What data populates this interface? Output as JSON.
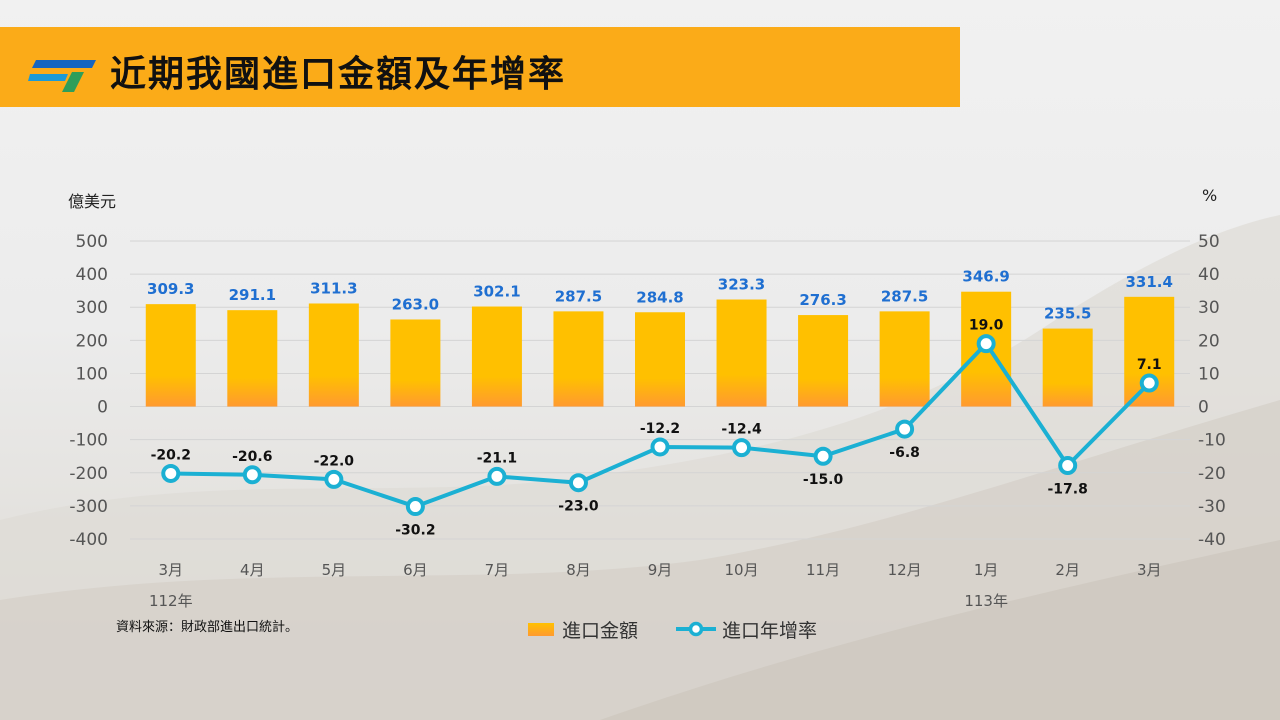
{
  "title": "近期我國進口金額及年增率",
  "source_note": "資料來源：財政部進出口統計。",
  "colors": {
    "title_bar": "#fbab18",
    "bar_top": "#ffc000",
    "bar_bottom": "#ff9a30",
    "line": "#1bb0d3",
    "bar_label": "#1f6fd1",
    "line_label": "#111111"
  },
  "icons": {
    "logo": "logo-icon"
  },
  "chart_data": {
    "type": "bar",
    "categories": [
      "3月",
      "4月",
      "5月",
      "6月",
      "7月",
      "8月",
      "9月",
      "10月",
      "11月",
      "12月",
      "1月",
      "2月",
      "3月"
    ],
    "year_labels": [
      {
        "label": "112年",
        "category_index": 0
      },
      {
        "label": "113年",
        "category_index": 10
      }
    ],
    "series": [
      {
        "name": "進口金額",
        "type": "bar",
        "axis": "left",
        "values": [
          309.3,
          291.1,
          311.3,
          263.0,
          302.1,
          287.5,
          284.8,
          323.3,
          276.3,
          287.5,
          346.9,
          235.5,
          331.4
        ],
        "labels": [
          "309.3",
          "291.1",
          "311.3",
          "263.0",
          "302.1",
          "287.5",
          "284.8",
          "323.3",
          "276.3",
          "287.5",
          "346.9",
          "235.5",
          "331.4"
        ]
      },
      {
        "name": "進口年增率",
        "type": "line",
        "axis": "right",
        "values": [
          -20.2,
          -20.6,
          -22.0,
          -30.2,
          -21.1,
          -23.0,
          -12.2,
          -12.4,
          -15.0,
          -6.8,
          19.0,
          -17.8,
          7.1
        ],
        "labels": [
          "-20.2",
          "-20.6",
          "-22.0",
          "-30.2",
          "-21.1",
          "-23.0",
          "-12.2",
          "-12.4",
          "-15.0",
          "-6.8",
          "19.0",
          "-17.8",
          "7.1"
        ]
      }
    ],
    "ylabel": "億美元",
    "ylabel_right": "%",
    "ylim": [
      -400,
      500
    ],
    "ylim_right": [
      -40,
      50
    ],
    "yticks": [
      "500",
      "400",
      "300",
      "200",
      "100",
      "0",
      "-100",
      "-200",
      "-300",
      "-400"
    ],
    "yticks_right": [
      "50",
      "40",
      "30",
      "20",
      "10",
      "0",
      "-10",
      "-20",
      "-30",
      "-40"
    ],
    "grid": true,
    "legend": "bottom"
  }
}
